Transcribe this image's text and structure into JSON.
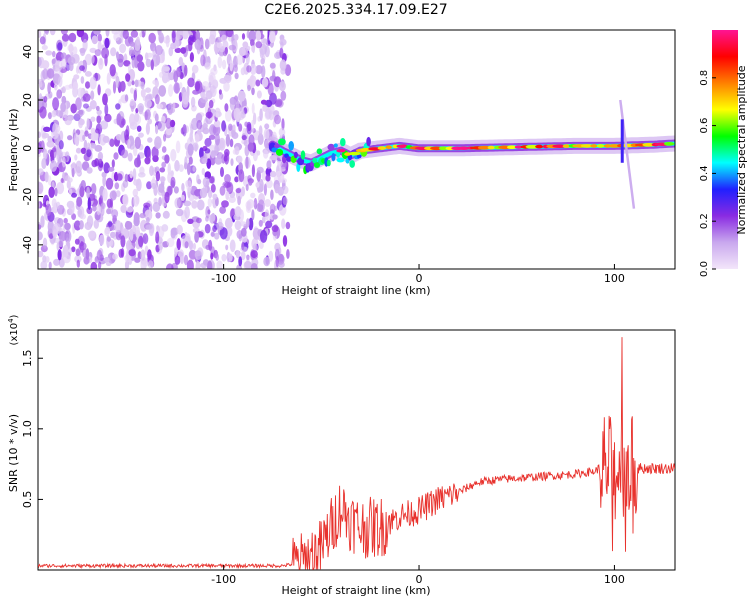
{
  "title": "C2E6.2025.334.17.09.E27",
  "chart_data": [
    {
      "type": "heatmap",
      "title": "C2E6.2025.334.17.09.E27",
      "xlabel": "Height of straight line (km)",
      "ylabel": "Frequency (Hz)",
      "xlim": [
        -195,
        131
      ],
      "ylim": [
        -50,
        49
      ],
      "xticks": [
        -100,
        0,
        100
      ],
      "yticks": [
        -40,
        -20,
        0,
        20,
        40
      ],
      "colorbar": {
        "label": "Normalized spectral amplitude",
        "range": [
          0,
          1
        ],
        "ticks": [
          0.0,
          0.2,
          0.4,
          0.6,
          0.8
        ],
        "tick_labels": [
          "0.0",
          "0.2",
          "0.4",
          "0.6",
          "0.8"
        ],
        "colormap": [
          "#f3e6fa",
          "#c9a8ee",
          "#8a2be2",
          "#2020ff",
          "#00ffff",
          "#00ff00",
          "#ffff00",
          "#ff8000",
          "#ff0000",
          "#ff1493"
        ]
      },
      "noise_region_x": [
        -195,
        -67
      ],
      "ridge": [
        {
          "x": -75,
          "y": 1.5
        },
        {
          "x": -70,
          "y": -1
        },
        {
          "x": -65,
          "y": -3
        },
        {
          "x": -60,
          "y": -5
        },
        {
          "x": -55,
          "y": -6
        },
        {
          "x": -50,
          "y": -4
        },
        {
          "x": -45,
          "y": -2
        },
        {
          "x": -40,
          "y": -1
        },
        {
          "x": -35,
          "y": -3
        },
        {
          "x": -30,
          "y": -1
        },
        {
          "x": -20,
          "y": 0
        },
        {
          "x": -10,
          "y": 1
        },
        {
          "x": 0,
          "y": 0
        },
        {
          "x": 20,
          "y": 0
        },
        {
          "x": 50,
          "y": 0.5
        },
        {
          "x": 80,
          "y": 1
        },
        {
          "x": 100,
          "y": 1
        },
        {
          "x": 120,
          "y": 1.5
        },
        {
          "x": 131,
          "y": 2
        }
      ]
    },
    {
      "type": "line",
      "xlabel": "Height of straight line (km)",
      "ylabel": "SNR (10 * v/v)",
      "y_scale_label": "(x10^4)",
      "y_scale_base": "(x10",
      "y_scale_exp": "4",
      "y_scale_close": ")",
      "xlim": [
        -195,
        131
      ],
      "ylim": [
        0,
        1.7
      ],
      "xticks": [
        -100,
        0,
        100
      ],
      "yticks": [
        0.5,
        1.0,
        1.5
      ],
      "ytick_labels": [
        "0.5",
        "1.0",
        "1.5"
      ],
      "color": "#e8322d",
      "series": [
        {
          "name": "SNR",
          "points": [
            {
              "x": -195,
              "y": 0.03
            },
            {
              "x": -150,
              "y": 0.03
            },
            {
              "x": -100,
              "y": 0.03
            },
            {
              "x": -70,
              "y": 0.03
            },
            {
              "x": -60,
              "y": 0.05
            },
            {
              "x": -50,
              "y": 0.15
            },
            {
              "x": -45,
              "y": 0.3
            },
            {
              "x": -40,
              "y": 0.45
            },
            {
              "x": -35,
              "y": 0.35
            },
            {
              "x": -30,
              "y": 0.3
            },
            {
              "x": -20,
              "y": 0.3
            },
            {
              "x": -10,
              "y": 0.38
            },
            {
              "x": 0,
              "y": 0.42
            },
            {
              "x": 10,
              "y": 0.5
            },
            {
              "x": 20,
              "y": 0.55
            },
            {
              "x": 30,
              "y": 0.62
            },
            {
              "x": 40,
              "y": 0.64
            },
            {
              "x": 50,
              "y": 0.65
            },
            {
              "x": 60,
              "y": 0.66
            },
            {
              "x": 70,
              "y": 0.67
            },
            {
              "x": 80,
              "y": 0.68
            },
            {
              "x": 90,
              "y": 0.7
            },
            {
              "x": 95,
              "y": 0.75
            },
            {
              "x": 100,
              "y": 0.7
            },
            {
              "x": 105,
              "y": 0.75
            },
            {
              "x": 110,
              "y": 0.72
            },
            {
              "x": 120,
              "y": 0.72
            },
            {
              "x": 131,
              "y": 0.72
            }
          ],
          "peak": {
            "x": 104,
            "y": 1.65
          }
        }
      ]
    }
  ]
}
